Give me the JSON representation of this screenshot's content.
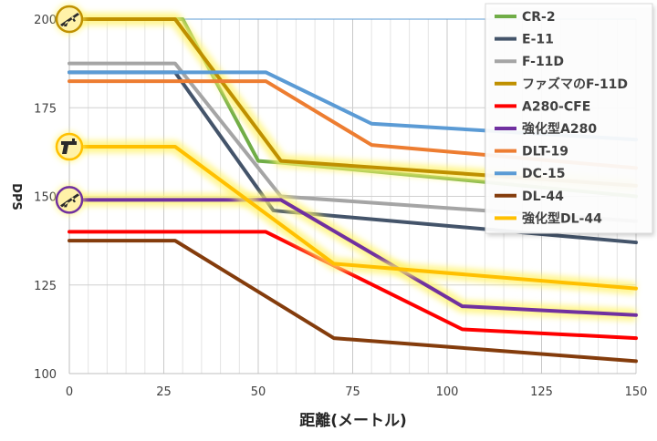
{
  "chart_data": {
    "type": "line",
    "xlabel": "距離(メートル)",
    "ylabel": "DPS",
    "xlim": [
      0,
      150
    ],
    "ylim": [
      100,
      200
    ],
    "x_ticks": [
      "0",
      "25",
      "50",
      "75",
      "100",
      "125",
      "150"
    ],
    "y_ticks": [
      "100",
      "125",
      "150",
      "175",
      "200"
    ],
    "grid": true,
    "legend_position": "top-right",
    "series": [
      {
        "name": "CR-2",
        "color": "#70ad47",
        "glow": false,
        "points": [
          [
            0,
            200
          ],
          [
            30,
            200
          ],
          [
            50,
            160
          ],
          [
            56,
            159.5
          ],
          [
            150,
            150
          ]
        ]
      },
      {
        "name": "E-11",
        "color": "#44546a",
        "glow": false,
        "points": [
          [
            0,
            185
          ],
          [
            28,
            185
          ],
          [
            54,
            146
          ],
          [
            150,
            137
          ]
        ]
      },
      {
        "name": "F-11D",
        "color": "#a5a5a5",
        "glow": false,
        "points": [
          [
            0,
            187.5
          ],
          [
            28,
            187.5
          ],
          [
            56,
            150
          ],
          [
            150,
            143
          ]
        ]
      },
      {
        "name": "ファズマのF-11D",
        "color": "#bf9000",
        "glow": true,
        "points": [
          [
            0,
            200
          ],
          [
            28,
            200
          ],
          [
            56,
            160
          ],
          [
            150,
            153
          ]
        ]
      },
      {
        "name": "A280-CFE",
        "color": "#ff0000",
        "glow": false,
        "points": [
          [
            0,
            140
          ],
          [
            52,
            140
          ],
          [
            104,
            112.5
          ],
          [
            150,
            110
          ]
        ]
      },
      {
        "name": "強化型A280",
        "color": "#7030a0",
        "glow": true,
        "points": [
          [
            0,
            149
          ],
          [
            56,
            149
          ],
          [
            104,
            119
          ],
          [
            150,
            116.5
          ]
        ]
      },
      {
        "name": "DLT-19",
        "color": "#ed7d31",
        "glow": false,
        "points": [
          [
            0,
            182.5
          ],
          [
            52,
            182.5
          ],
          [
            80,
            164.5
          ],
          [
            150,
            158
          ]
        ]
      },
      {
        "name": "DC-15",
        "color": "#5b9bd5",
        "glow": false,
        "points": [
          [
            0,
            185
          ],
          [
            52,
            185
          ],
          [
            80,
            170.5
          ],
          [
            150,
            166
          ]
        ]
      },
      {
        "name": "DL-44",
        "color": "#843c0c",
        "glow": false,
        "points": [
          [
            0,
            137.5
          ],
          [
            28,
            137.5
          ],
          [
            70,
            110
          ],
          [
            150,
            103.5
          ]
        ]
      },
      {
        "name": "強化型DL-44",
        "color": "#ffc000",
        "glow": true,
        "points": [
          [
            0,
            164
          ],
          [
            28,
            164
          ],
          [
            70,
            131
          ],
          [
            150,
            124
          ]
        ]
      }
    ],
    "icons": [
      {
        "name": "rifle-icon",
        "value_y": 200,
        "ring_color": "#bf9000"
      },
      {
        "name": "blaster-pistol-icon",
        "value_y": 164,
        "ring_color": "#ffc000"
      },
      {
        "name": "rifle-icon",
        "value_y": 149,
        "ring_color": "#7030a0"
      }
    ]
  }
}
